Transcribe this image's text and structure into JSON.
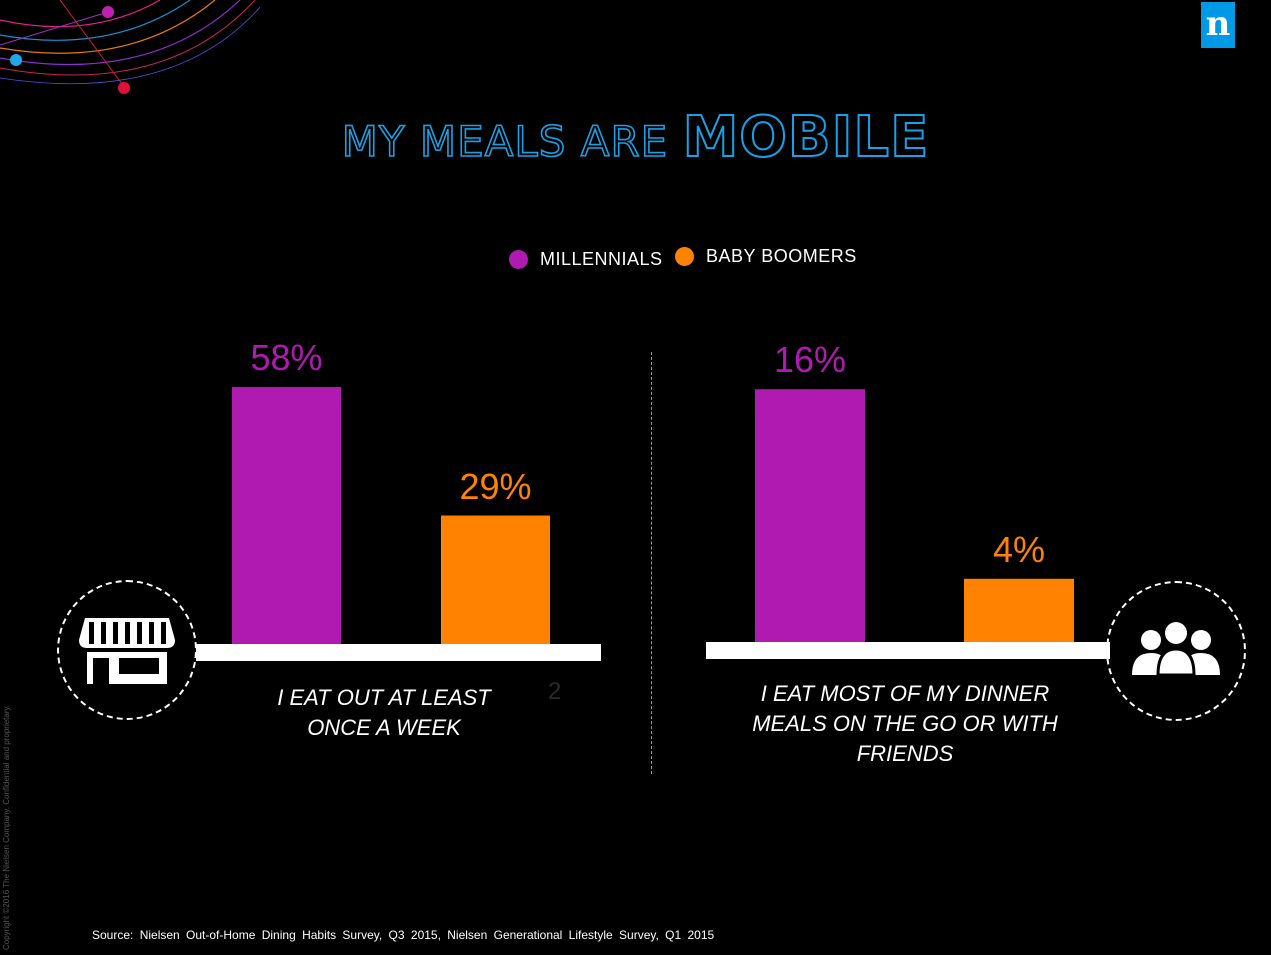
{
  "logo_letter": "n",
  "title": {
    "part1": "MY MEALS ARE ",
    "part2": "MOBILE"
  },
  "legend": [
    {
      "label": "MILLENNIALS",
      "color": "#b01ab0"
    },
    {
      "label": "BABY BOOMERS",
      "color": "#ff8200"
    }
  ],
  "chart_data": [
    {
      "type": "bar",
      "categories": [
        "MILLENNIALS",
        "BABY BOOMERS"
      ],
      "values": [
        58,
        29
      ],
      "data_labels": [
        "58%",
        "29%"
      ],
      "caption_lines": [
        "I EAT OUT AT LEAST",
        "ONCE A WEEK"
      ],
      "icon": "storefront-icon",
      "colors": [
        "#b01ab0",
        "#ff8200"
      ]
    },
    {
      "type": "bar",
      "categories": [
        "MILLENNIALS",
        "BABY BOOMERS"
      ],
      "values": [
        16,
        4
      ],
      "data_labels": [
        "16%",
        "4%"
      ],
      "caption_lines": [
        "I EAT MOST OF MY DINNER",
        "MEALS ON THE GO OR WITH",
        "FRIENDS"
      ],
      "icon": "group-of-people-icon",
      "colors": [
        "#b01ab0",
        "#ff8200"
      ]
    }
  ],
  "stray_mark": "2",
  "copyright": "Copyright ©2016 The Nielsen Company. Confidential and proprietary.",
  "source": "Source: Nielsen Out-of-Home Dining Habits Survey, Q3 2015, Nielsen Generational Lifestyle Survey, Q1 2015"
}
